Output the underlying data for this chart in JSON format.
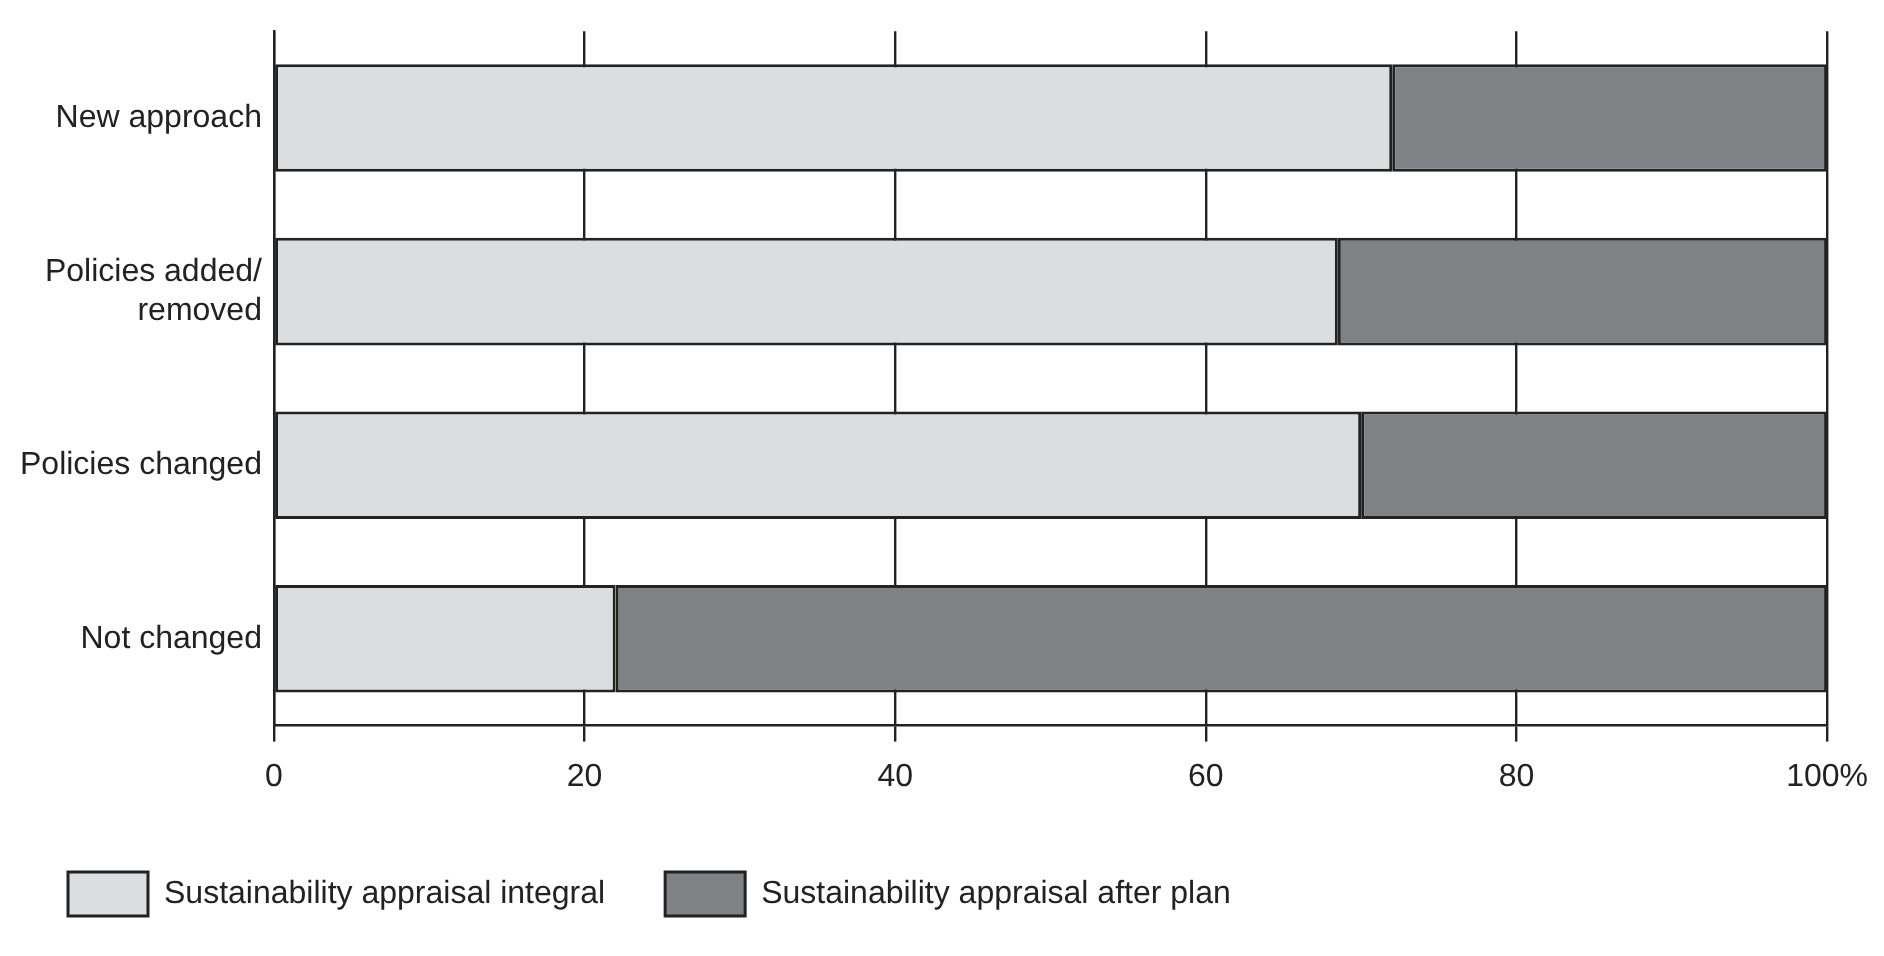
{
  "chart_data": {
    "type": "bar",
    "orientation": "horizontal",
    "stacked": true,
    "categories": [
      "New approach",
      "Policies added/ removed",
      "Policies changed",
      "Not changed"
    ],
    "series": [
      {
        "name": "Sustainability appraisal integral",
        "color": "#dcdddf",
        "values": [
          72,
          68.5,
          70,
          22
        ]
      },
      {
        "name": "Sustainability appraisal after plan",
        "color": "#808185",
        "values": [
          28,
          31.5,
          30,
          78
        ]
      }
    ],
    "xlim": [
      0,
      100
    ],
    "xticks": [
      0,
      20,
      40,
      60,
      {
        "value": 80,
        "label": "80"
      },
      {
        "value": 100,
        "label": "100%"
      }
    ],
    "grid": "x",
    "legend": "bottom"
  }
}
